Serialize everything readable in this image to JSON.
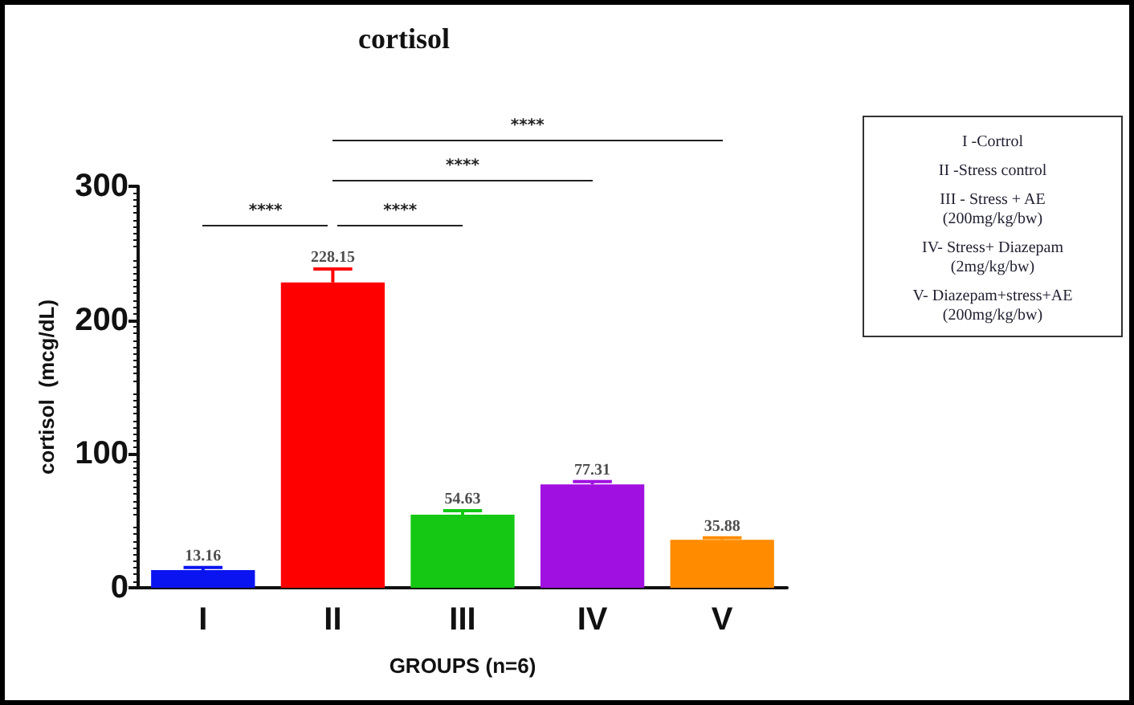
{
  "chart_data": {
    "type": "bar",
    "title": "cortisol",
    "xlabel": "GROUPS (n=6)",
    "ylabel": "cortisol  (mcg/dL)",
    "categories": [
      "I",
      "II",
      "III",
      "IV",
      "V"
    ],
    "values": [
      13.16,
      228.15,
      54.63,
      77.31,
      35.88
    ],
    "colors": [
      "#0a14f0",
      "#ff0000",
      "#14c814",
      "#a010e0",
      "#ff8c00"
    ],
    "errors": [
      2,
      10,
      3,
      2,
      1.5
    ],
    "data_labels": true,
    "ylim": [
      0,
      300
    ],
    "yticks": [
      0,
      100,
      200,
      300
    ],
    "grid": false,
    "annotations": [
      "****",
      "****",
      "****",
      "****",
      "I -Cortrol",
      "II -Stress control",
      "III - Stress + AE (200mg/kg/bw)",
      "IV- Stress+ Diazepam (2mg/kg/bw)",
      "V- Diazepam+stress+AE (200mg/kg/bw)"
    ]
  }
}
